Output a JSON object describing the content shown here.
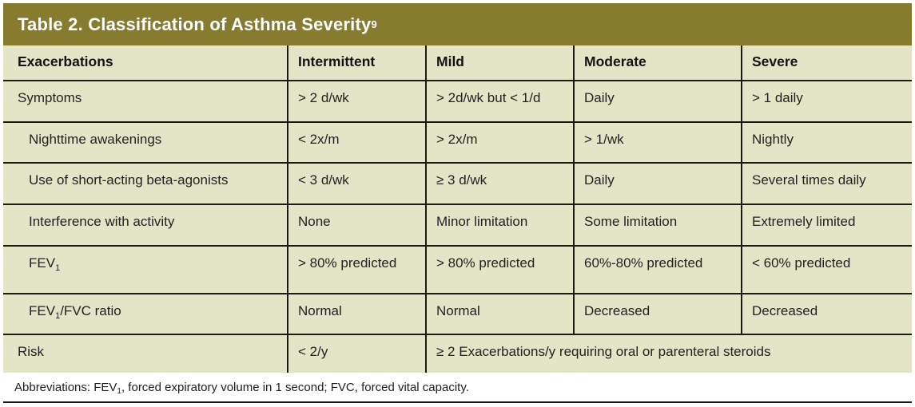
{
  "title": {
    "text": "Table 2. Classification of Asthma Severity",
    "reference": "9"
  },
  "colors": {
    "title_bar": "#867B2F",
    "title_text": "#FFFFFF",
    "cell_bg": "#E4E4C6",
    "border": "#1B1B10",
    "text": "#222222"
  },
  "table": {
    "headers": [
      "Exacerbations",
      "Intermittent",
      "Mild",
      "Moderate",
      "Severe"
    ],
    "rows": [
      {
        "label": "Symptoms",
        "cells": [
          "> 2 d/wk",
          "> 2d/wk but < 1/d",
          "Daily",
          "> 1 daily"
        ]
      },
      {
        "label": "Nighttime awakenings",
        "cells": [
          "< 2x/m",
          "> 2x/m",
          "> 1/wk",
          "Nightly"
        ]
      },
      {
        "label": "Use of short-acting beta-agonists",
        "cells": [
          "< 3 d/wk",
          "≥ 3 d/wk",
          "Daily",
          "Several times daily"
        ]
      },
      {
        "label": "Interference with activity",
        "cells": [
          "None",
          "Minor limitation",
          "Some limitation",
          "Extremely limited"
        ]
      },
      {
        "label_pre": "FEV",
        "label_sub": "1",
        "label_post": "",
        "cells": [
          "> 80% predicted",
          "> 80% predicted",
          "60%-80% predicted",
          "< 60% predicted"
        ]
      },
      {
        "label_pre": "FEV",
        "label_sub": "1",
        "label_post": "/FVC ratio",
        "cells": [
          "Normal",
          "Normal",
          "Decreased",
          "Decreased"
        ]
      },
      {
        "label": "Risk",
        "cells": [
          "< 2/y"
        ],
        "span_cell": "≥ 2 Exacerbations/y requiring oral or parenteral steroids"
      }
    ]
  },
  "footnote": {
    "pre": "Abbreviations: FEV",
    "sub": "1",
    "post": ", forced expiratory volume in 1 second; FVC, forced vital capacity."
  }
}
